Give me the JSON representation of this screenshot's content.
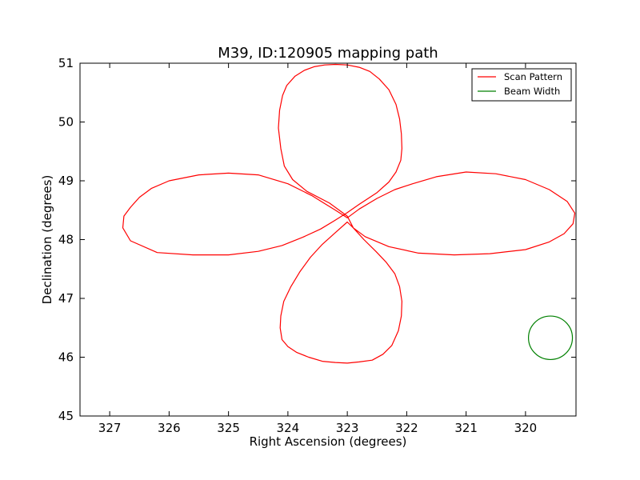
{
  "chart_data": {
    "type": "line",
    "title": "M39, ID:120905 mapping path",
    "xlabel": "Right Ascension (degrees)",
    "ylabel": "Declination (degrees)",
    "xlim": [
      327.5,
      319.15
    ],
    "ylim": [
      45,
      51
    ],
    "x_inverted": true,
    "x_ticks": [
      327,
      326,
      325,
      324,
      323,
      322,
      321,
      320
    ],
    "y_ticks": [
      45,
      46,
      47,
      48,
      49,
      50,
      51
    ],
    "grid": false,
    "legend_position": "top-right",
    "series": [
      {
        "name": "Scan Pattern",
        "color": "#ff0000",
        "x": [
          323.0,
          323.3,
          323.68,
          323.92,
          324.06,
          324.12,
          324.16,
          324.14,
          324.09,
          324.02,
          323.88,
          323.72,
          323.56,
          323.38,
          323.2,
          323.0,
          322.8,
          322.62,
          322.46,
          322.3,
          322.18,
          322.12,
          322.09,
          322.08,
          322.1,
          322.18,
          322.3,
          322.5,
          322.8,
          323.0,
          323.22,
          323.45,
          323.75,
          324.1,
          324.5,
          325.0,
          325.6,
          326.2,
          326.65,
          326.78,
          326.76,
          326.65,
          326.5,
          326.3,
          326.0,
          325.5,
          325.0,
          324.5,
          324.0,
          323.6,
          323.2,
          323.0,
          322.8,
          322.5,
          322.2,
          321.9,
          321.5,
          321.0,
          320.5,
          320.0,
          319.6,
          319.3,
          319.17,
          319.2,
          319.35,
          319.6,
          320.0,
          320.6,
          321.2,
          321.8,
          322.3,
          322.7,
          322.9,
          323.0,
          323.2,
          323.42,
          323.62,
          323.8,
          323.95,
          324.07,
          324.12,
          324.13,
          324.1,
          324.0,
          323.85,
          323.65,
          323.42,
          323.2,
          323.0,
          322.8,
          322.58,
          322.4,
          322.25,
          322.14,
          322.09,
          322.08,
          322.12,
          322.2,
          322.35,
          322.52,
          322.72,
          322.9,
          323.0
        ],
        "y": [
          48.4,
          48.62,
          48.82,
          49.02,
          49.25,
          49.55,
          49.9,
          50.2,
          50.45,
          50.62,
          50.78,
          50.88,
          50.94,
          50.97,
          50.98,
          50.97,
          50.93,
          50.86,
          50.73,
          50.55,
          50.3,
          50.05,
          49.8,
          49.55,
          49.35,
          49.15,
          48.98,
          48.8,
          48.6,
          48.46,
          48.32,
          48.18,
          48.04,
          47.9,
          47.8,
          47.74,
          47.74,
          47.78,
          47.98,
          48.2,
          48.4,
          48.55,
          48.72,
          48.87,
          49.0,
          49.1,
          49.13,
          49.1,
          48.95,
          48.75,
          48.5,
          48.37,
          48.52,
          48.7,
          48.85,
          48.95,
          49.07,
          49.15,
          49.12,
          49.02,
          48.85,
          48.65,
          48.45,
          48.27,
          48.1,
          47.96,
          47.83,
          47.76,
          47.74,
          47.77,
          47.88,
          48.05,
          48.2,
          48.3,
          48.12,
          47.92,
          47.7,
          47.45,
          47.2,
          46.95,
          46.7,
          46.5,
          46.3,
          46.18,
          46.08,
          46.0,
          45.93,
          45.91,
          45.9,
          45.92,
          45.95,
          46.05,
          46.2,
          46.45,
          46.7,
          46.95,
          47.2,
          47.42,
          47.62,
          47.8,
          48.0,
          48.2,
          48.4
        ]
      },
      {
        "name": "Beam Width",
        "color": "#008000",
        "center": [
          319.58,
          46.33
        ],
        "radius": 0.37
      }
    ]
  }
}
